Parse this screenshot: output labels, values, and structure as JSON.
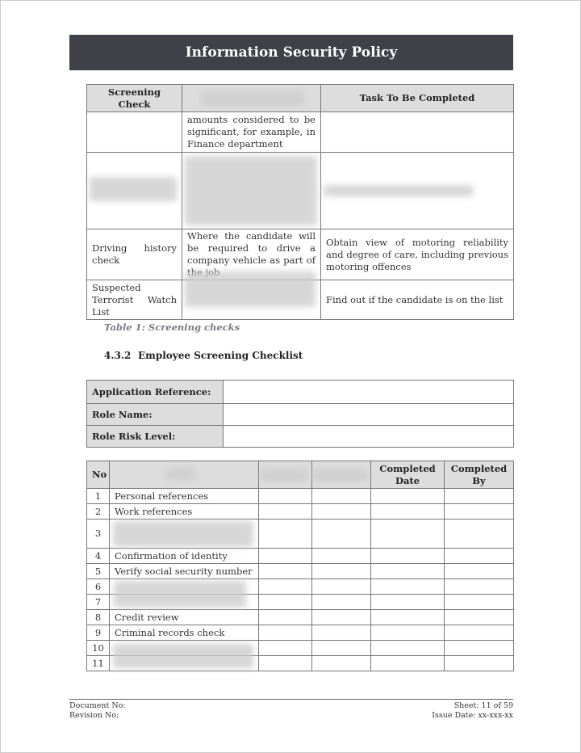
{
  "header": {
    "title": "Information Security Policy"
  },
  "screening_table": {
    "headers": [
      "Screening Check",
      "",
      "Task To Be Completed"
    ],
    "rows": [
      [
        "",
        "amounts considered to be significant, for example, in Finance department",
        ""
      ],
      [
        "",
        "",
        ""
      ],
      [
        "Driving history check",
        "Where the candidate will be required to drive a company vehicle as part of the job",
        "Obtain view of motoring reliability and degree of care, including previous motoring offences"
      ],
      [
        "Suspected Terrorist Watch List",
        "",
        "Find out if the candidate is on the list"
      ]
    ]
  },
  "caption": "Table 1: Screening checks",
  "section": {
    "number": "4.3.2",
    "title": "Employee Screening Checklist"
  },
  "info_table": {
    "labels": [
      "Application Reference:",
      "Role Name:",
      "Role Risk Level:"
    ],
    "values": [
      "",
      "",
      ""
    ]
  },
  "checklist": {
    "headers": [
      "No",
      "",
      "",
      "",
      "Completed Date",
      "Completed By"
    ],
    "rows": [
      {
        "no": "1",
        "item": "Personal references"
      },
      {
        "no": "2",
        "item": "Work references"
      },
      {
        "no": "3",
        "item": ""
      },
      {
        "no": "4",
        "item": "Confirmation of identity"
      },
      {
        "no": "5",
        "item": "Verify social security number"
      },
      {
        "no": "6",
        "item": ""
      },
      {
        "no": "7",
        "item": ""
      },
      {
        "no": "8",
        "item": "Credit review"
      },
      {
        "no": "9",
        "item": "Criminal records check"
      },
      {
        "no": "10",
        "item": ""
      },
      {
        "no": "11",
        "item": ""
      }
    ]
  },
  "footer": {
    "document_no": "Document No:",
    "revision_no": "Revision No:",
    "sheet": "Sheet: 11 of 59",
    "issue_date": "Issue Date: xx-xxx-xx"
  }
}
